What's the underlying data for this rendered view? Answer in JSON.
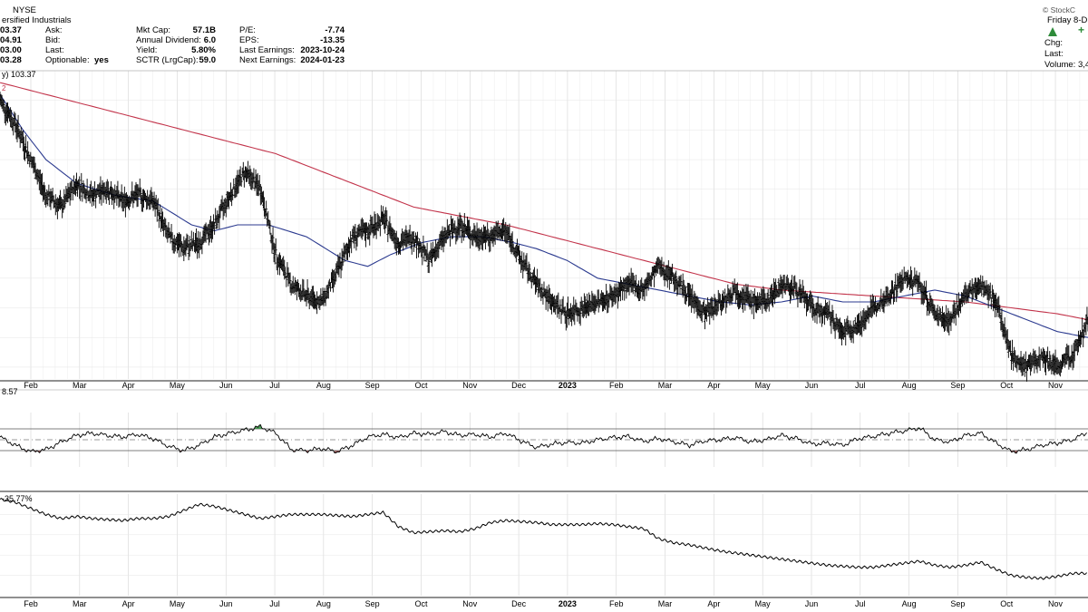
{
  "header": {
    "exchange": "NYSE",
    "sector": "ersified Industrials",
    "watermark": "© StockC",
    "date_prefix": "Friday 8-D",
    "left_values": [
      "03.37",
      "04.91",
      "03.00",
      "03.28"
    ],
    "labels_col1": [
      "Ask:",
      "Bid:",
      "Last:",
      "Optionable:"
    ],
    "optionable_value": "yes",
    "labels_col2": [
      "Mkt Cap:",
      "Annual Dividend:",
      "Yield:",
      "SCTR (LrgCap):"
    ],
    "values_col2": [
      "57.1B",
      "6.0",
      "5.80%",
      "59.0"
    ],
    "labels_col3": [
      "P/E:",
      "EPS:",
      "Last Earnings:",
      "Next Earnings:"
    ],
    "values_col3": [
      "-7.74",
      "-13.35",
      "2023-10-24",
      "2024-01-23"
    ],
    "right_labels": [
      "Chg:",
      "Last:",
      "Volume: 3,4"
    ],
    "plus_sign": "+"
  },
  "colors": {
    "price_bars": "#000000",
    "ma_short": "#2b3a8f",
    "ma_long": "#c2334a",
    "grid": "#d4d4d4",
    "oscillator_fill_high": "#2e8b3a",
    "oscillator_fill_low": "#8b4a4a",
    "up_arrow": "#2e8b3a"
  },
  "chart_data": [
    {
      "type": "line",
      "panel": "price",
      "legend": "y) 103.37",
      "legend_extra": "2",
      "x_tick_labels": [
        "Feb",
        "Mar",
        "Apr",
        "May",
        "Jun",
        "Jul",
        "Aug",
        "Sep",
        "Oct",
        "Nov",
        "Dec",
        "2023",
        "Feb",
        "Mar",
        "Apr",
        "May",
        "Jun",
        "Jul",
        "Aug",
        "Sep",
        "Oct",
        "Nov"
      ],
      "ylim": [
        88,
        140
      ],
      "grid": true,
      "price_points": [
        [
          0,
          135
        ],
        [
          4,
          131
        ],
        [
          8,
          125
        ],
        [
          12,
          119
        ],
        [
          16,
          117
        ],
        [
          20,
          121
        ],
        [
          24,
          119
        ],
        [
          28,
          120
        ],
        [
          32,
          118
        ],
        [
          36,
          119
        ],
        [
          40,
          118
        ],
        [
          44,
          112
        ],
        [
          48,
          110
        ],
        [
          52,
          111
        ],
        [
          56,
          114
        ],
        [
          60,
          119
        ],
        [
          64,
          123
        ],
        [
          68,
          120
        ],
        [
          72,
          109
        ],
        [
          76,
          104
        ],
        [
          80,
          102
        ],
        [
          84,
          101
        ],
        [
          88,
          106
        ],
        [
          92,
          112
        ],
        [
          96,
          113
        ],
        [
          100,
          115
        ],
        [
          104,
          111
        ],
        [
          108,
          112
        ],
        [
          112,
          108
        ],
        [
          116,
          112
        ],
        [
          120,
          114
        ],
        [
          124,
          112
        ],
        [
          128,
          112
        ],
        [
          132,
          113
        ],
        [
          136,
          108
        ],
        [
          140,
          104
        ],
        [
          144,
          101
        ],
        [
          148,
          99
        ],
        [
          152,
          100
        ],
        [
          156,
          101
        ],
        [
          160,
          102
        ],
        [
          164,
          104
        ],
        [
          168,
          103
        ],
        [
          172,
          107
        ],
        [
          176,
          105
        ],
        [
          180,
          102
        ],
        [
          184,
          99
        ],
        [
          188,
          101
        ],
        [
          192,
          103
        ],
        [
          196,
          101
        ],
        [
          200,
          101
        ],
        [
          204,
          104
        ],
        [
          208,
          103
        ],
        [
          212,
          100
        ],
        [
          216,
          99
        ],
        [
          220,
          96
        ],
        [
          224,
          97
        ],
        [
          228,
          100
        ],
        [
          232,
          102
        ],
        [
          236,
          105
        ],
        [
          240,
          104
        ],
        [
          244,
          99
        ],
        [
          248,
          98
        ],
        [
          252,
          102
        ],
        [
          256,
          104
        ],
        [
          260,
          101
        ],
        [
          264,
          92
        ],
        [
          268,
          90
        ],
        [
          272,
          92
        ],
        [
          276,
          90
        ],
        [
          280,
          92
        ],
        [
          284,
          98
        ]
      ],
      "ma_short_points": [
        [
          0,
          136
        ],
        [
          6,
          130
        ],
        [
          12,
          125
        ],
        [
          20,
          121
        ],
        [
          30,
          119
        ],
        [
          40,
          118
        ],
        [
          50,
          114
        ],
        [
          56,
          113
        ],
        [
          62,
          114
        ],
        [
          70,
          114
        ],
        [
          80,
          112
        ],
        [
          90,
          108
        ],
        [
          96,
          107
        ],
        [
          102,
          109
        ],
        [
          110,
          111
        ],
        [
          118,
          112
        ],
        [
          126,
          112
        ],
        [
          134,
          111
        ],
        [
          140,
          110
        ],
        [
          148,
          108
        ],
        [
          156,
          105
        ],
        [
          164,
          104
        ],
        [
          172,
          103
        ],
        [
          180,
          102
        ],
        [
          188,
          101
        ],
        [
          196,
          100.5
        ],
        [
          204,
          101
        ],
        [
          212,
          102
        ],
        [
          220,
          101
        ],
        [
          228,
          101
        ],
        [
          236,
          102
        ],
        [
          244,
          103
        ],
        [
          252,
          102
        ],
        [
          260,
          100
        ],
        [
          268,
          98
        ],
        [
          276,
          96
        ],
        [
          284,
          95
        ]
      ],
      "ma_long_points": [
        [
          0,
          138
        ],
        [
          12,
          136
        ],
        [
          24,
          134
        ],
        [
          36,
          132
        ],
        [
          48,
          130
        ],
        [
          60,
          128
        ],
        [
          72,
          126
        ],
        [
          84,
          123
        ],
        [
          96,
          120
        ],
        [
          108,
          117
        ],
        [
          120,
          115.5
        ],
        [
          132,
          114
        ],
        [
          144,
          112
        ],
        [
          156,
          110
        ],
        [
          168,
          108
        ],
        [
          180,
          106
        ],
        [
          192,
          104
        ],
        [
          204,
          103
        ],
        [
          216,
          102.5
        ],
        [
          228,
          102
        ],
        [
          240,
          101.5
        ],
        [
          252,
          101
        ],
        [
          264,
          100
        ],
        [
          276,
          99
        ],
        [
          284,
          98
        ]
      ]
    },
    {
      "type": "line",
      "panel": "oscillator",
      "legend": "8.57",
      "ylim": [
        0,
        100
      ],
      "reference_levels": [
        30,
        50,
        70
      ],
      "grid": true,
      "points": [
        [
          0,
          55
        ],
        [
          4,
          40
        ],
        [
          8,
          28
        ],
        [
          12,
          32
        ],
        [
          16,
          46
        ],
        [
          20,
          58
        ],
        [
          24,
          62
        ],
        [
          28,
          58
        ],
        [
          32,
          55
        ],
        [
          36,
          60
        ],
        [
          40,
          52
        ],
        [
          44,
          38
        ],
        [
          48,
          30
        ],
        [
          52,
          40
        ],
        [
          56,
          55
        ],
        [
          60,
          62
        ],
        [
          64,
          68
        ],
        [
          68,
          74
        ],
        [
          72,
          62
        ],
        [
          76,
          32
        ],
        [
          80,
          30
        ],
        [
          84,
          34
        ],
        [
          88,
          28
        ],
        [
          92,
          40
        ],
        [
          96,
          55
        ],
        [
          100,
          60
        ],
        [
          104,
          54
        ],
        [
          108,
          62
        ],
        [
          112,
          60
        ],
        [
          116,
          65
        ],
        [
          120,
          58
        ],
        [
          124,
          60
        ],
        [
          128,
          55
        ],
        [
          132,
          62
        ],
        [
          136,
          48
        ],
        [
          140,
          36
        ],
        [
          144,
          42
        ],
        [
          148,
          45
        ],
        [
          152,
          44
        ],
        [
          156,
          50
        ],
        [
          160,
          54
        ],
        [
          164,
          56
        ],
        [
          168,
          47
        ],
        [
          172,
          52
        ],
        [
          176,
          46
        ],
        [
          180,
          40
        ],
        [
          184,
          48
        ],
        [
          188,
          50
        ],
        [
          192,
          54
        ],
        [
          196,
          46
        ],
        [
          200,
          50
        ],
        [
          204,
          58
        ],
        [
          208,
          52
        ],
        [
          212,
          42
        ],
        [
          216,
          44
        ],
        [
          220,
          40
        ],
        [
          224,
          52
        ],
        [
          228,
          56
        ],
        [
          232,
          62
        ],
        [
          236,
          66
        ],
        [
          240,
          72
        ],
        [
          244,
          50
        ],
        [
          248,
          46
        ],
        [
          252,
          58
        ],
        [
          256,
          62
        ],
        [
          260,
          44
        ],
        [
          264,
          28
        ],
        [
          268,
          32
        ],
        [
          272,
          40
        ],
        [
          276,
          44
        ],
        [
          280,
          50
        ],
        [
          284,
          64
        ]
      ]
    },
    {
      "type": "line",
      "panel": "relative_performance",
      "legend": "-35.77%",
      "ylim": [
        0,
        100
      ],
      "grid": true,
      "points": [
        [
          0,
          95
        ],
        [
          4,
          92
        ],
        [
          8,
          86
        ],
        [
          12,
          80
        ],
        [
          16,
          76
        ],
        [
          20,
          78
        ],
        [
          24,
          76
        ],
        [
          28,
          75
        ],
        [
          32,
          74
        ],
        [
          36,
          76
        ],
        [
          40,
          76
        ],
        [
          44,
          78
        ],
        [
          48,
          84
        ],
        [
          52,
          90
        ],
        [
          56,
          88
        ],
        [
          60,
          84
        ],
        [
          64,
          80
        ],
        [
          68,
          76
        ],
        [
          72,
          78
        ],
        [
          76,
          80
        ],
        [
          80,
          80
        ],
        [
          84,
          80
        ],
        [
          88,
          79
        ],
        [
          92,
          78
        ],
        [
          96,
          80
        ],
        [
          100,
          82
        ],
        [
          104,
          68
        ],
        [
          108,
          62
        ],
        [
          112,
          63
        ],
        [
          116,
          64
        ],
        [
          120,
          63
        ],
        [
          124,
          66
        ],
        [
          128,
          72
        ],
        [
          132,
          74
        ],
        [
          136,
          73
        ],
        [
          140,
          72
        ],
        [
          144,
          70
        ],
        [
          148,
          70
        ],
        [
          152,
          70
        ],
        [
          156,
          71
        ],
        [
          160,
          70
        ],
        [
          164,
          68
        ],
        [
          168,
          66
        ],
        [
          172,
          56
        ],
        [
          176,
          52
        ],
        [
          180,
          50
        ],
        [
          184,
          47
        ],
        [
          188,
          44
        ],
        [
          192,
          42
        ],
        [
          196,
          40
        ],
        [
          200,
          38
        ],
        [
          204,
          36
        ],
        [
          208,
          34
        ],
        [
          212,
          32
        ],
        [
          216,
          30
        ],
        [
          220,
          29
        ],
        [
          224,
          28
        ],
        [
          228,
          28
        ],
        [
          232,
          30
        ],
        [
          236,
          32
        ],
        [
          240,
          34
        ],
        [
          244,
          30
        ],
        [
          248,
          28
        ],
        [
          252,
          30
        ],
        [
          256,
          33
        ],
        [
          260,
          26
        ],
        [
          264,
          20
        ],
        [
          268,
          18
        ],
        [
          272,
          17
        ],
        [
          276,
          19
        ],
        [
          280,
          22
        ],
        [
          284,
          22
        ]
      ]
    }
  ]
}
